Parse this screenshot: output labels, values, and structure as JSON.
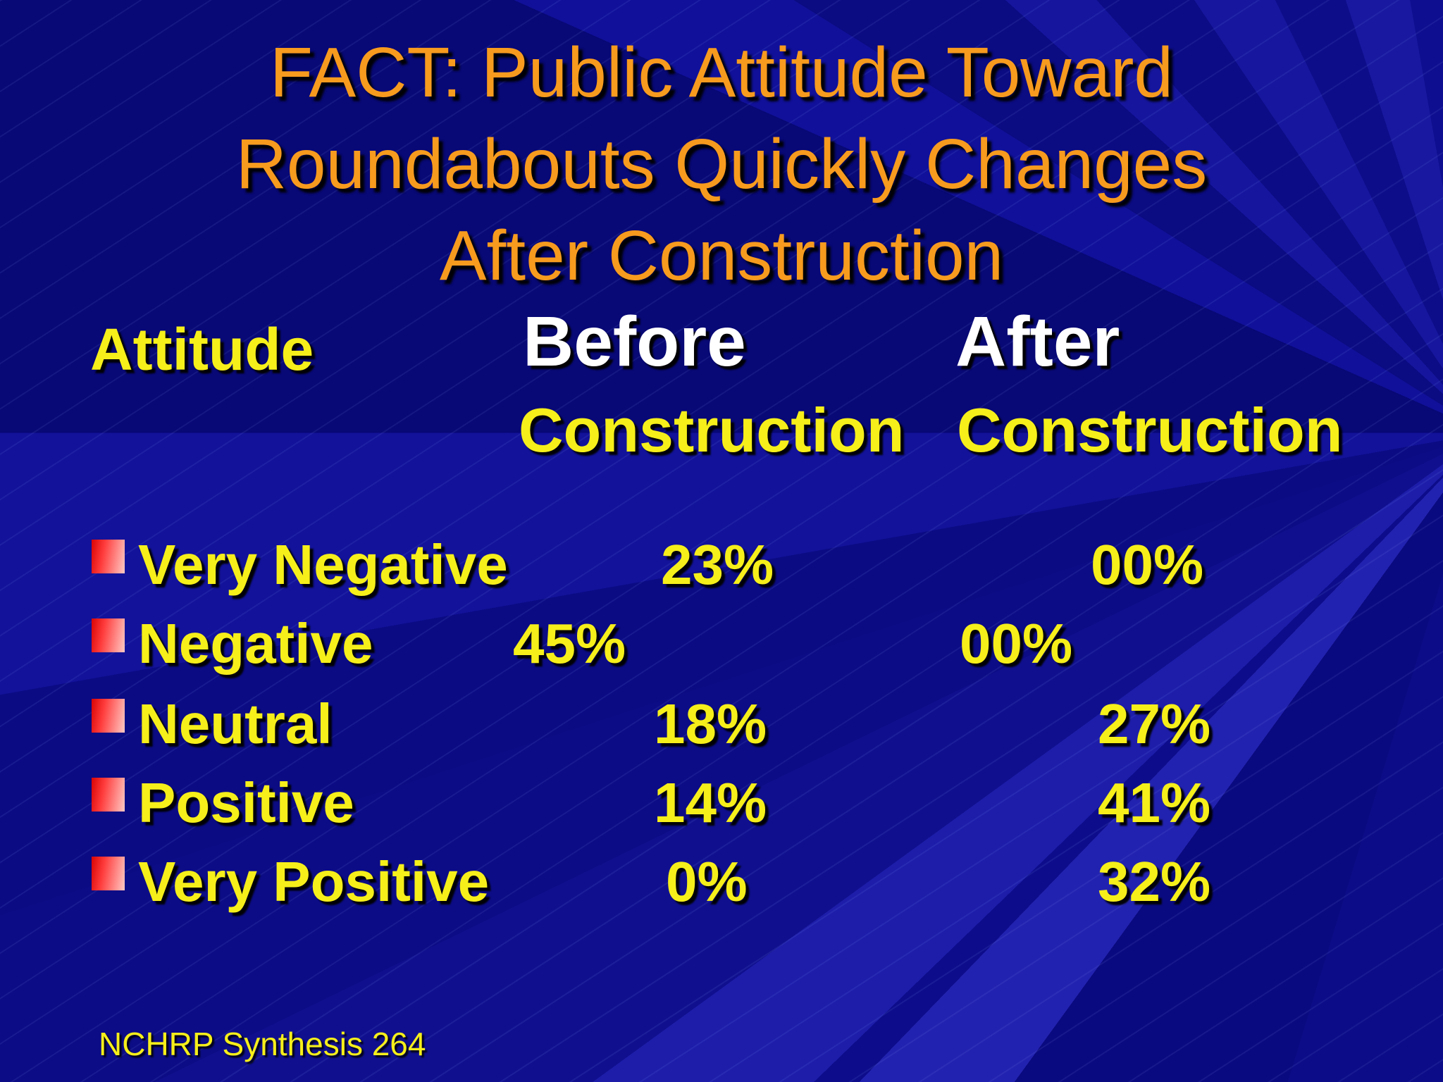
{
  "title": {
    "lines": [
      "FACT: Public Attitude Toward",
      "Roundabouts Quickly Changes",
      "After Construction"
    ]
  },
  "table": {
    "header": {
      "attitude": "Attitude",
      "before_line1": "Before",
      "before_line2": "Construction",
      "after_line1": "After",
      "after_line2": "Construction"
    },
    "rows": [
      {
        "label": "Very Negative",
        "before": "23%",
        "after": "00%"
      },
      {
        "label": "Negative",
        "before": "45%",
        "after": "00%"
      },
      {
        "label": "Neutral",
        "before": "18%",
        "after": "27%"
      },
      {
        "label": "Positive",
        "before": "14%",
        "after": "41%"
      },
      {
        "label": "Very Positive",
        "before": "0%",
        "after": "32%"
      }
    ]
  },
  "footer": {
    "source": "NCHRP Synthesis 264"
  },
  "colors": {
    "background": "#0d0d8e",
    "title_orange": "#f79b1e",
    "text_yellow": "#f6ef1a",
    "text_white": "#ffffff",
    "bullet_red": "#d90404"
  },
  "icons": {
    "bullet": "red-gradient-square"
  },
  "chart_data": {
    "type": "table",
    "title": "Public Attitude Toward Roundabouts Before and After Construction",
    "columns": [
      "Attitude",
      "Before Construction",
      "After Construction"
    ],
    "categories": [
      "Very Negative",
      "Negative",
      "Neutral",
      "Positive",
      "Very Positive"
    ],
    "series": [
      {
        "name": "Before Construction",
        "values": [
          23,
          45,
          18,
          14,
          0
        ]
      },
      {
        "name": "After Construction",
        "values": [
          0,
          0,
          27,
          41,
          32
        ]
      }
    ],
    "unit": "%",
    "source": "NCHRP Synthesis 264"
  }
}
